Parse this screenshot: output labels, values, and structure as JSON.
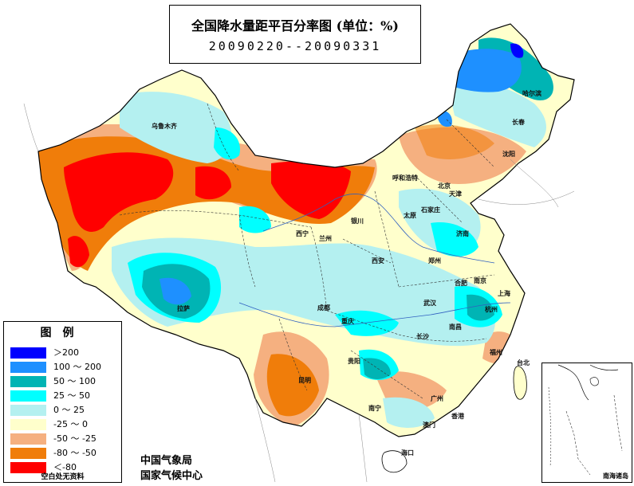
{
  "map": {
    "title": "全国降水量距平百分率图 (单位：%)",
    "period": "20090220--20090331",
    "colors": {
      "gt200": "#0000ff",
      "100_200": "#1e90ff",
      "50_100": "#00b4b4",
      "25_50": "#00ffff",
      "0_25": "#b4f0f0",
      "m25_0": "#ffffcc",
      "m50_m25": "#f5b080",
      "m80_m50": "#f07d0a",
      "lt_m80": "#ff0000"
    }
  },
  "legend": {
    "title": "图例",
    "items": [
      {
        "label": "＞200",
        "color": "#0000ff"
      },
      {
        "label": "100 ～ 200",
        "color": "#1e90ff"
      },
      {
        "label": "50 ～ 100",
        "color": "#00b4b4"
      },
      {
        "label": "25 ～ 50",
        "color": "#00ffff"
      },
      {
        "label": "0 ～ 25",
        "color": "#b4f0f0"
      },
      {
        "label": "-25 ～ 0",
        "color": "#ffffcc"
      },
      {
        "label": "-50 ～ -25",
        "color": "#f5b080"
      },
      {
        "label": "-80 ～ -50",
        "color": "#f07d0a"
      },
      {
        "label": "＜-80",
        "color": "#ff0000"
      }
    ],
    "note": "空白处无资料"
  },
  "agency": {
    "line1": "中国气象局",
    "line2": "国家气候中心"
  },
  "inset": {
    "label": "南海诸岛"
  },
  "cities": [
    {
      "id": "urumqi",
      "name": "乌鲁木齐"
    },
    {
      "id": "harbin",
      "name": "哈尔滨"
    },
    {
      "id": "changchun",
      "name": "长春"
    },
    {
      "id": "shenyang",
      "name": "沈阳"
    },
    {
      "id": "hohhot",
      "name": "呼和浩特"
    },
    {
      "id": "beijing",
      "name": "北京"
    },
    {
      "id": "tianjin",
      "name": "天津"
    },
    {
      "id": "shijiazhuang",
      "name": "石家庄"
    },
    {
      "id": "taiyuan",
      "name": "太原"
    },
    {
      "id": "yinchuan",
      "name": "银川"
    },
    {
      "id": "xining",
      "name": "西宁"
    },
    {
      "id": "lanzhou",
      "name": "兰州"
    },
    {
      "id": "jinan",
      "name": "济南"
    },
    {
      "id": "zhengzhou",
      "name": "郑州"
    },
    {
      "id": "xian",
      "name": "西安"
    },
    {
      "id": "hefei",
      "name": "合肥"
    },
    {
      "id": "nanjing",
      "name": "南京"
    },
    {
      "id": "shanghai",
      "name": "上海"
    },
    {
      "id": "hangzhou",
      "name": "杭州"
    },
    {
      "id": "wuhan",
      "name": "武汉"
    },
    {
      "id": "nanchang",
      "name": "南昌"
    },
    {
      "id": "changsha",
      "name": "长沙"
    },
    {
      "id": "fuzhou",
      "name": "福州"
    },
    {
      "id": "taibei",
      "name": "台北"
    },
    {
      "id": "chengdu",
      "name": "成都"
    },
    {
      "id": "chongqing",
      "name": "重庆"
    },
    {
      "id": "guiyang",
      "name": "贵阳"
    },
    {
      "id": "lhasa",
      "name": "拉萨"
    },
    {
      "id": "kunming",
      "name": "昆明"
    },
    {
      "id": "nanning",
      "name": "南宁"
    },
    {
      "id": "guangzhou",
      "name": "广州"
    },
    {
      "id": "hongkong",
      "name": "香港"
    },
    {
      "id": "aomen",
      "name": "澳门"
    },
    {
      "id": "haikou",
      "name": "海口"
    }
  ]
}
